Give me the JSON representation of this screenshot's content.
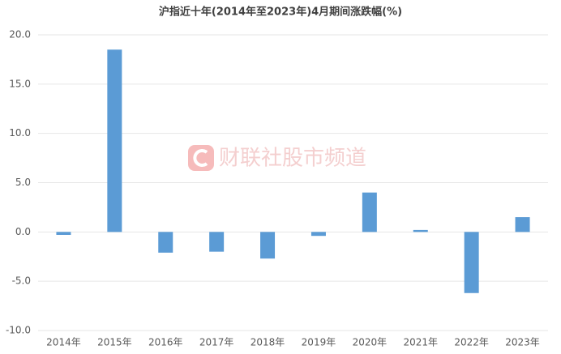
{
  "chart_data": {
    "type": "bar",
    "title": "沪指近十年(2014年至2023年)4月期间涨跌幅(%)",
    "watermark": "财联社股市频道",
    "categories": [
      "2014年",
      "2015年",
      "2016年",
      "2017年",
      "2018年",
      "2019年",
      "2020年",
      "2021年",
      "2022年",
      "2023年"
    ],
    "values": [
      -0.3,
      18.5,
      -2.1,
      -2.0,
      -2.7,
      -0.4,
      4.0,
      0.2,
      -6.2,
      1.5
    ],
    "color": "#5b9bd5",
    "ylim": [
      -10,
      20
    ],
    "yticks": [
      {
        "value": -10,
        "label": "-10.0"
      },
      {
        "value": -5,
        "label": "-5.0"
      },
      {
        "value": 0,
        "label": "0.0"
      },
      {
        "value": 5,
        "label": "5.0"
      },
      {
        "value": 10,
        "label": "10.0"
      },
      {
        "value": 15,
        "label": "15.0"
      },
      {
        "value": 20,
        "label": "20.0"
      }
    ],
    "grid": true
  }
}
